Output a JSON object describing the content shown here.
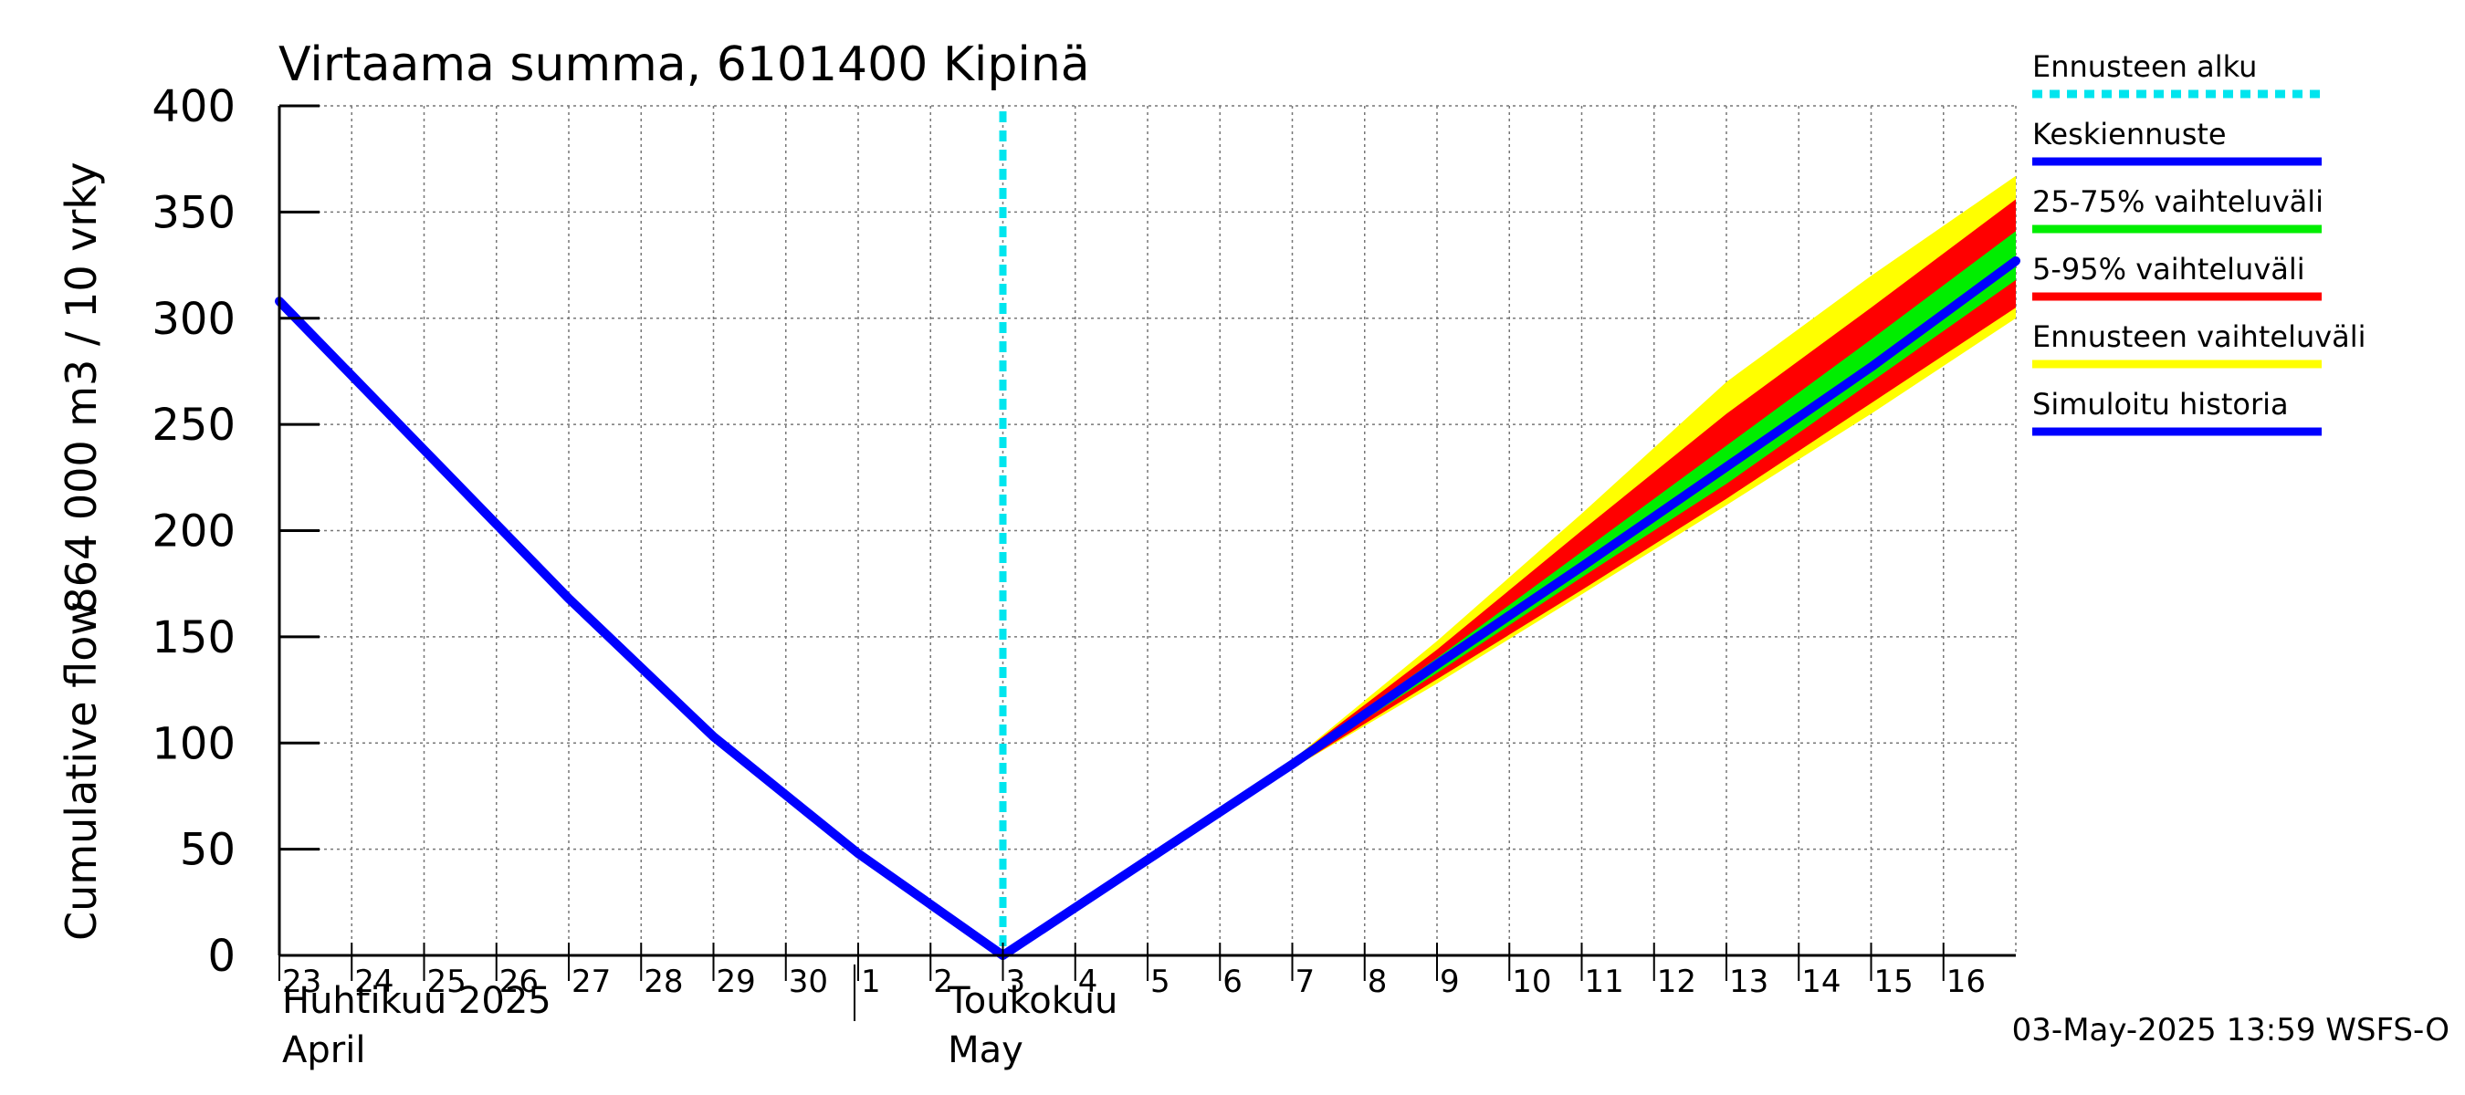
{
  "chart_data": {
    "type": "area",
    "title": "Virtaama summa, 6101400 Kipinä",
    "ylabel_top": "864 000 m3 / 10 vrky",
    "ylabel_bottom": "Cumulative flow",
    "ylim": [
      0,
      400
    ],
    "yticks": [
      0,
      50,
      100,
      150,
      200,
      250,
      300,
      350,
      400
    ],
    "ytick_labels": [
      "0",
      "50",
      "100",
      "150",
      "200",
      "250",
      "300",
      "350",
      "400"
    ],
    "xlim": [
      0,
      24
    ],
    "day_ticks": [
      {
        "x": 0,
        "label": "23"
      },
      {
        "x": 1,
        "label": "24"
      },
      {
        "x": 2,
        "label": "25"
      },
      {
        "x": 3,
        "label": "26"
      },
      {
        "x": 4,
        "label": "27"
      },
      {
        "x": 5,
        "label": "28"
      },
      {
        "x": 6,
        "label": "29"
      },
      {
        "x": 7,
        "label": "30"
      },
      {
        "x": 8,
        "label": "1"
      },
      {
        "x": 9,
        "label": "2"
      },
      {
        "x": 10,
        "label": "3"
      },
      {
        "x": 11,
        "label": "4"
      },
      {
        "x": 12,
        "label": "5"
      },
      {
        "x": 13,
        "label": "6"
      },
      {
        "x": 14,
        "label": "7"
      },
      {
        "x": 15,
        "label": "8"
      },
      {
        "x": 16,
        "label": "9"
      },
      {
        "x": 17,
        "label": "10"
      },
      {
        "x": 18,
        "label": "11"
      },
      {
        "x": 19,
        "label": "12"
      },
      {
        "x": 20,
        "label": "13"
      },
      {
        "x": 21,
        "label": "14"
      },
      {
        "x": 22,
        "label": "15"
      },
      {
        "x": 23,
        "label": "16"
      }
    ],
    "month_labels": [
      {
        "x": 0,
        "line1": "Huhtikuu  2025",
        "line2": "April"
      },
      {
        "x": 9.2,
        "line1": "Toukokuu",
        "line2": "May"
      }
    ],
    "month_boundary_x": 8,
    "forecast_start_x": 10,
    "colors": {
      "forecast_start": "#00e5ee",
      "median": "#0000ff",
      "band_25_75": "#00ee00",
      "band_5_95": "#ff0000",
      "band_full": "#ffff00",
      "history": "#0000ff"
    },
    "history": {
      "x": [
        0,
        2,
        4,
        6,
        8,
        10
      ],
      "y": [
        308,
        238,
        168,
        103,
        48,
        0
      ]
    },
    "median": {
      "x": [
        10,
        12,
        14,
        16,
        18,
        20,
        22,
        24
      ],
      "y": [
        0,
        45,
        90,
        137,
        183,
        230,
        277,
        327
      ]
    },
    "band_full": {
      "x": [
        10,
        14,
        16,
        18,
        20,
        22,
        24
      ],
      "lower": [
        0,
        88,
        128,
        170,
        212,
        255,
        300
      ],
      "upper": [
        0,
        92,
        148,
        208,
        270,
        320,
        367
      ]
    },
    "band_5_95": {
      "x": [
        10,
        14,
        16,
        18,
        20,
        22,
        24
      ],
      "lower": [
        0,
        88,
        130,
        172,
        215,
        260,
        305
      ],
      "upper": [
        0,
        92,
        144,
        200,
        255,
        305,
        356
      ]
    },
    "band_25_75": {
      "x": [
        10,
        14,
        16,
        18,
        20,
        22,
        24
      ],
      "lower": [
        0,
        89,
        133,
        178,
        222,
        270,
        318
      ],
      "upper": [
        0,
        91,
        140,
        190,
        240,
        290,
        341
      ]
    },
    "legend": [
      {
        "label": "Ennusteen alku",
        "style": "dashed",
        "color": "#00e5ee"
      },
      {
        "label": "Keskiennuste",
        "style": "solid",
        "color": "#0000ff"
      },
      {
        "label": "25-75% vaihteluväli",
        "style": "solid",
        "color": "#00ee00"
      },
      {
        "label": "5-95% vaihteluväli",
        "style": "solid",
        "color": "#ff0000"
      },
      {
        "label": "Ennusteen vaihteluväli",
        "style": "solid",
        "color": "#ffff00"
      },
      {
        "label": "Simuloitu historia",
        "style": "solid",
        "color": "#0000ff"
      }
    ],
    "footer": "03-May-2025 13:59 WSFS-O"
  }
}
